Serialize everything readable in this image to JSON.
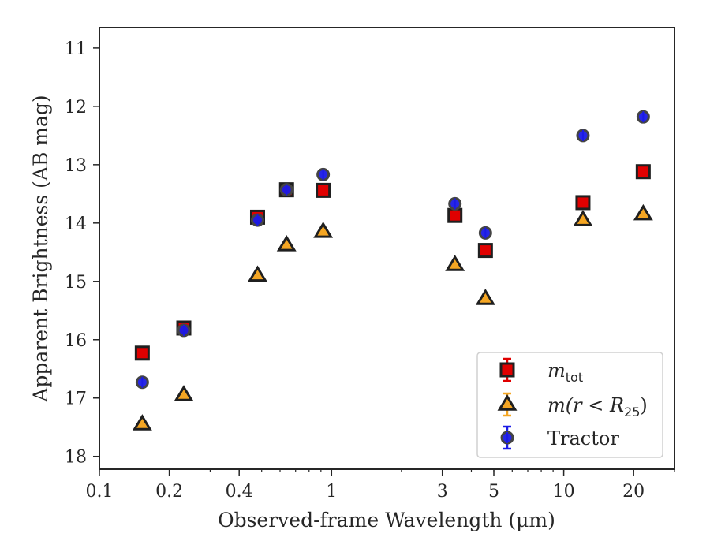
{
  "chart_data": {
    "type": "scatter",
    "xscale": "log",
    "xlim": [
      0.1,
      30
    ],
    "ylim": [
      18.22,
      10.65
    ],
    "y_inverted": true,
    "xlabel": "Observed-frame Wavelength (μm)",
    "ylabel": "Apparent Brightness (AB mag)",
    "xticks": [
      0.1,
      0.2,
      0.4,
      1,
      3,
      5,
      10,
      20
    ],
    "xtick_labels": [
      "0.1",
      "0.2",
      "0.4",
      "1",
      "3",
      "5",
      "10",
      "20"
    ],
    "yticks": [
      11,
      12,
      13,
      14,
      15,
      16,
      17,
      18
    ],
    "ytick_labels": [
      "11",
      "12",
      "13",
      "14",
      "15",
      "16",
      "17",
      "18"
    ],
    "grid": false,
    "legend_position": "lower-right",
    "series": [
      {
        "name": "m_tot",
        "legend_main": "m",
        "legend_sub": "tot",
        "marker": "square",
        "color": "#e00000",
        "errorbar_color": "#e00000",
        "points": [
          {
            "x": 0.153,
            "y": 16.23
          },
          {
            "x": 0.231,
            "y": 15.8
          },
          {
            "x": 0.48,
            "y": 13.9
          },
          {
            "x": 0.64,
            "y": 13.43
          },
          {
            "x": 0.92,
            "y": 13.44
          },
          {
            "x": 3.4,
            "y": 13.87
          },
          {
            "x": 4.6,
            "y": 14.47
          },
          {
            "x": 12.1,
            "y": 13.65
          },
          {
            "x": 22.0,
            "y": 13.12
          }
        ]
      },
      {
        "name": "m(r<R25)",
        "legend_main": "m(r < R",
        "legend_sub": "25",
        "legend_tail": ")",
        "marker": "triangle",
        "color": "#f5a623",
        "errorbar_color": "#f5a623",
        "points": [
          {
            "x": 0.153,
            "y": 17.45
          },
          {
            "x": 0.231,
            "y": 16.95
          },
          {
            "x": 0.48,
            "y": 14.9
          },
          {
            "x": 0.64,
            "y": 14.38
          },
          {
            "x": 0.92,
            "y": 14.15
          },
          {
            "x": 3.4,
            "y": 14.72
          },
          {
            "x": 4.6,
            "y": 15.3
          },
          {
            "x": 12.1,
            "y": 13.95
          },
          {
            "x": 22.0,
            "y": 13.85
          }
        ]
      },
      {
        "name": "Tractor",
        "legend_main": "Tractor",
        "marker": "circle",
        "color": "#1a1ae6",
        "errorbar_color": "#1a1ae6",
        "points": [
          {
            "x": 0.153,
            "y": 16.73
          },
          {
            "x": 0.231,
            "y": 15.84
          },
          {
            "x": 0.48,
            "y": 13.95
          },
          {
            "x": 0.64,
            "y": 13.43
          },
          {
            "x": 0.92,
            "y": 13.17
          },
          {
            "x": 3.4,
            "y": 13.67
          },
          {
            "x": 4.6,
            "y": 14.17
          },
          {
            "x": 12.1,
            "y": 12.5
          },
          {
            "x": 22.0,
            "y": 12.18
          }
        ]
      }
    ]
  }
}
